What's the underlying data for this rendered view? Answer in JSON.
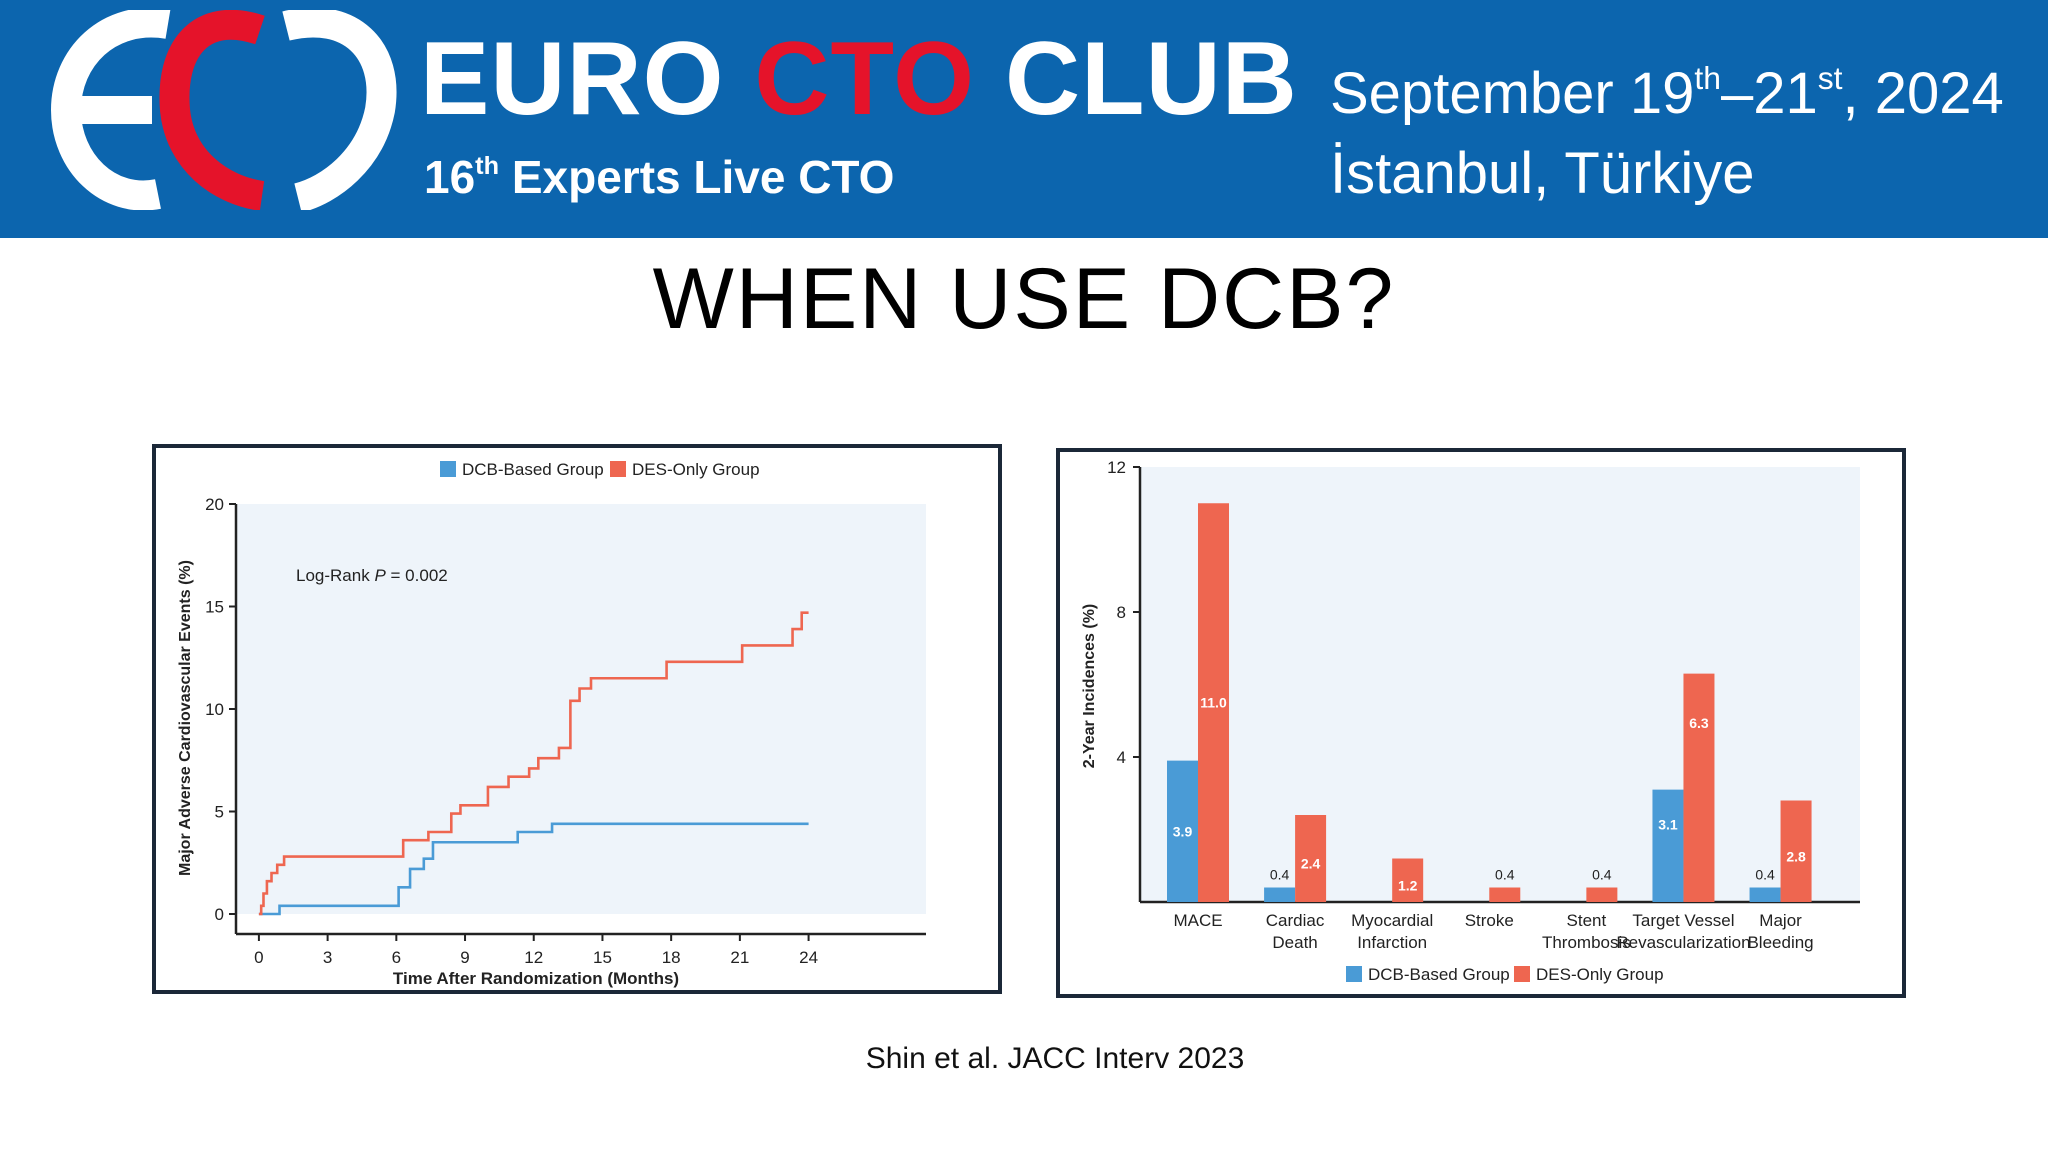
{
  "header": {
    "brand_part1": "EURO",
    "brand_part2": "CTO",
    "brand_part3": "CLUB",
    "edition_num": "16",
    "edition_sup": "th",
    "edition_text": "Experts Live CTO",
    "date_part1": "September 19",
    "date_sup1": "th",
    "date_part2": "–21",
    "date_sup2": "st",
    "date_part3": ", 2024",
    "city": "İstanbul, Türkiye"
  },
  "slide": {
    "title": "WHEN USE DCB?",
    "citation": "Shin et al. JACC Interv 2023"
  },
  "colors": {
    "banner": "#0c65ae",
    "brand_red": "#e5132a",
    "dcb": "#4a9bd6",
    "des": "#ee6650",
    "plot_bg": "#eef4fa"
  },
  "chart_data": [
    {
      "type": "line",
      "title": "",
      "xlabel": "Time After Randomization (Months)",
      "ylabel": "Major Adverse Cardiovascular Events (%)",
      "xticks": [
        0,
        3,
        6,
        9,
        12,
        15,
        18,
        21,
        24
      ],
      "yticks": [
        0,
        5,
        10,
        15,
        20
      ],
      "xlim": [
        -1,
        30
      ],
      "ylim": [
        0,
        20
      ],
      "annotation_prefix": "Log-Rank",
      "annotation_p": "P",
      "annotation_value": " = 0.002",
      "legend_position": "top",
      "series": [
        {
          "name": "DCB-Based Group",
          "color": "#4a9bd6",
          "x": [
            0,
            0.9,
            5.6,
            6.1,
            6.6,
            7.2,
            7.6,
            11.3,
            12.8,
            24
          ],
          "y": [
            0,
            0.4,
            0.4,
            1.3,
            2.2,
            2.7,
            3.5,
            4.0,
            4.4,
            4.4
          ]
        },
        {
          "name": "DES-Only Group",
          "color": "#ee6650",
          "x": [
            0,
            0.1,
            0.2,
            0.35,
            0.55,
            0.8,
            1.1,
            5.9,
            6.3,
            7.4,
            8.4,
            8.8,
            10.0,
            10.9,
            11.8,
            12.2,
            13.1,
            13.6,
            14.0,
            14.5,
            17.8,
            21.1,
            23.3,
            23.7,
            24
          ],
          "y": [
            0,
            0.4,
            1.0,
            1.6,
            2.0,
            2.4,
            2.8,
            2.8,
            3.6,
            4.0,
            4.9,
            5.3,
            6.2,
            6.7,
            7.1,
            7.6,
            8.1,
            10.4,
            11.0,
            11.5,
            12.3,
            13.1,
            13.9,
            14.7,
            14.7
          ]
        }
      ]
    },
    {
      "type": "bar",
      "title": "",
      "ylabel": "2-Year Incidences (%)",
      "yticks": [
        4,
        8,
        12
      ],
      "ylim": [
        0,
        12
      ],
      "categories": [
        [
          "MACE"
        ],
        [
          "Cardiac",
          "Death"
        ],
        [
          "Myocardial",
          "Infarction"
        ],
        [
          "Stroke"
        ],
        [
          "Stent",
          "Thrombosis"
        ],
        [
          "Target Vessel",
          "Revascularization"
        ],
        [
          "Major",
          "Bleeding"
        ]
      ],
      "legend_position": "bottom",
      "series": [
        {
          "name": "DCB-Based Group",
          "color": "#4a9bd6",
          "values": [
            3.9,
            0.4,
            0,
            0,
            0,
            3.1,
            0.4
          ],
          "labels": [
            "3.9",
            "0.4",
            "",
            "",
            "",
            "3.1",
            "0.4"
          ]
        },
        {
          "name": "DES-Only Group",
          "color": "#ee6650",
          "values": [
            11.0,
            2.4,
            1.2,
            0.4,
            0.4,
            6.3,
            2.8
          ],
          "labels": [
            "11.0",
            "2.4",
            "1.2",
            "0.4",
            "0.4",
            "6.3",
            "2.8"
          ]
        }
      ]
    }
  ]
}
